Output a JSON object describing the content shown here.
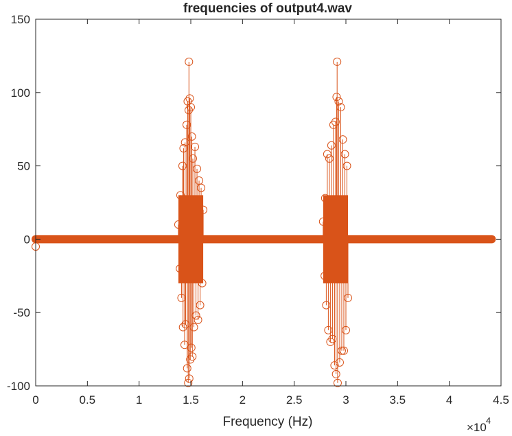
{
  "chart_data": {
    "type": "stem",
    "title": "frequencies of output4.wav",
    "xlabel": "Frequency (Hz)",
    "ylabel": "",
    "xlim": [
      0,
      45000
    ],
    "ylim": [
      -100,
      150
    ],
    "x_ticks": [
      0,
      5000,
      10000,
      15000,
      20000,
      25000,
      30000,
      35000,
      40000,
      45000
    ],
    "x_tick_labels": [
      "0",
      "0.5",
      "1",
      "1.5",
      "2",
      "2.5",
      "3",
      "3.5",
      "4",
      "4.5"
    ],
    "x_exponent_label": "×10",
    "x_exponent_power": "4",
    "y_ticks": [
      -100,
      -50,
      0,
      50,
      100,
      150
    ],
    "y_tick_labels": [
      "-100",
      "-50",
      "0",
      "50",
      "100",
      "150"
    ],
    "grid": false,
    "marker": "circle",
    "color": "#D95319",
    "series": [
      {
        "x": [
          0,
          13800,
          13950,
          14000,
          14100,
          14200,
          14250,
          14300,
          14400,
          14450,
          14500,
          14600,
          14650,
          14700,
          14750,
          14800,
          14820,
          14850,
          14900,
          14950,
          15000,
          15050,
          15100,
          15150,
          15200,
          15300,
          15400,
          15500,
          15600,
          15700,
          15800,
          15900,
          16000,
          16100,
          16200,
          27800,
          27950,
          28000,
          28100,
          28200,
          28300,
          28400,
          28500,
          28600,
          28700,
          28800,
          28900,
          29000,
          29050,
          29100,
          29150,
          29200,
          29300,
          29400,
          29500,
          29600,
          29700,
          29800,
          29900,
          30000,
          30100,
          30200
        ],
        "y": [
          -5,
          10,
          -20,
          30,
          -40,
          50,
          -60,
          62,
          -72,
          66,
          -58,
          78,
          -88,
          94,
          -98,
          88,
          121,
          -95,
          96,
          -82,
          90,
          -74,
          70,
          -80,
          55,
          -60,
          63,
          -52,
          48,
          -55,
          40,
          -45,
          35,
          -30,
          20,
          12,
          -25,
          28,
          -45,
          58,
          -62,
          55,
          -70,
          64,
          -68,
          78,
          -86,
          80,
          -92,
          97,
          121,
          -98,
          94,
          -84,
          90,
          -76,
          68,
          -76,
          58,
          -62,
          50,
          -40
        ]
      }
    ],
    "baseline_x_range": [
      0,
      44100
    ]
  }
}
